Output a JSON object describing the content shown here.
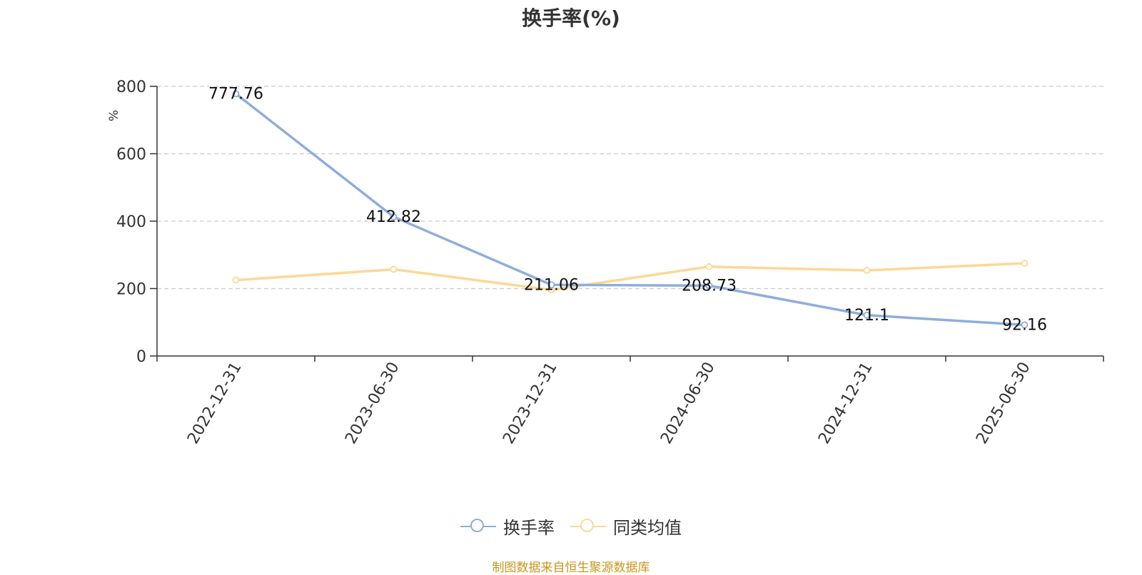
{
  "chart_data": {
    "type": "line",
    "title": "换手率(%)",
    "ylabel": "%",
    "xlabel": "",
    "categories": [
      "2022-12-31",
      "2023-06-30",
      "2023-12-31",
      "2024-06-30",
      "2024-12-31",
      "2025-06-30"
    ],
    "ylim": [
      0,
      800
    ],
    "yticks": [
      0,
      200,
      400,
      600,
      800
    ],
    "grid": true,
    "legend_position": "bottom",
    "series": [
      {
        "name": "换手率",
        "color": "#8eaedb",
        "values": [
          777.76,
          412.82,
          211.06,
          208.73,
          121.1,
          92.16
        ],
        "labels": [
          "777.76",
          "412.82",
          "211.06",
          "208.73",
          "121.1",
          "92.16"
        ],
        "show_labels": true
      },
      {
        "name": "同类均值",
        "color": "#fcd896",
        "values": [
          225,
          257,
          196,
          265,
          254,
          275
        ],
        "show_labels": false
      }
    ]
  },
  "source_note": "制图数据来自恒生聚源数据库"
}
